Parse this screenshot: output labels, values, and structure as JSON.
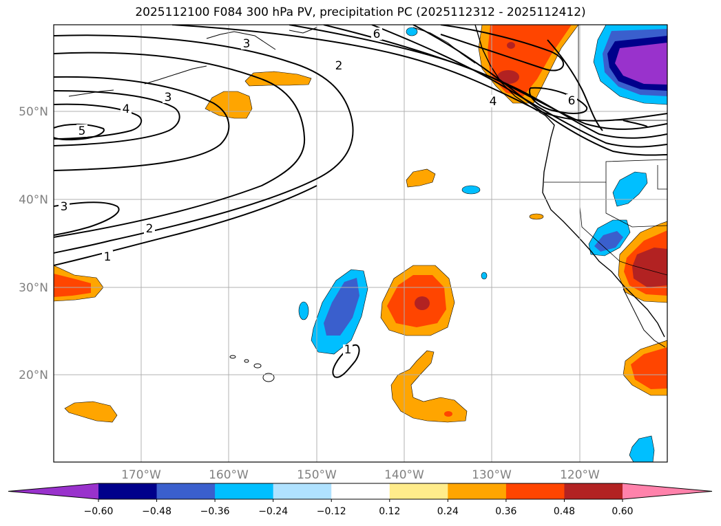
{
  "title": "2025112100 F084 300 hPa PV, precipitation PC (2025112312 - 2025112412)",
  "lat_labels": [
    "50°N",
    "40°N",
    "30°N",
    "20°N"
  ],
  "lon_labels": [
    "170°W",
    "160°W",
    "150°W",
    "140°W",
    "130°W",
    "120°W"
  ],
  "pv_contour_labels": [
    "3",
    "6",
    "2",
    "3",
    "4",
    "5",
    "4",
    "6",
    "3",
    "2",
    "1",
    "1"
  ],
  "colorbar": {
    "ticks": [
      "−0.60",
      "−0.48",
      "−0.36",
      "−0.24",
      "−0.12",
      "0.12",
      "0.24",
      "0.36",
      "0.48",
      "0.60"
    ],
    "colors": [
      "#9932cc",
      "#00008b",
      "#3a5fcd",
      "#00bfff",
      "#b0e2ff",
      "#ffffff",
      "#ffec8b",
      "#ffa500",
      "#ff4500",
      "#b22222",
      "#ff82ab"
    ]
  },
  "palette": {
    "orange": "#ffa500",
    "orangered": "#ff4500",
    "firebrick": "#b22222",
    "deepskyblue": "#00bfff",
    "royalblue": "#3a5fcd",
    "navy": "#00008b",
    "purple": "#9932cc",
    "grid": "#b0b0b0"
  }
}
